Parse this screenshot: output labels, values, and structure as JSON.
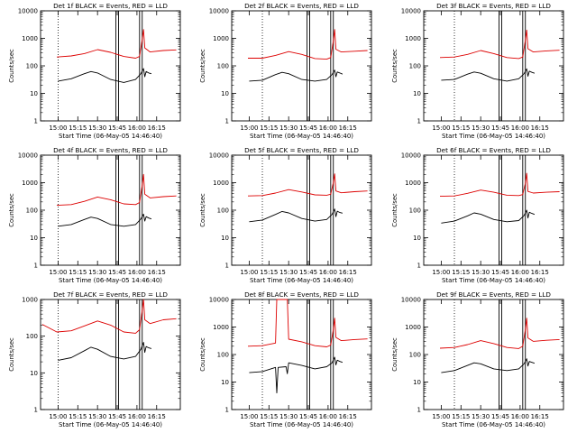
{
  "figure": {
    "background": "#ffffff",
    "events_color": "#000000",
    "lld_color": "#dd0000"
  },
  "chart_data": [
    {
      "type": "line",
      "title": "Det 1f BLACK = Events, RED = LLD",
      "xlabel": "Start Time (06-May-05 14:46:40)",
      "ylabel": "Counts/sec",
      "y_scale": "log",
      "ylim": [
        1,
        10000
      ],
      "yticks": [
        "1",
        "10",
        "100",
        "1000",
        "10000"
      ],
      "xticks": [
        "15:00",
        "15:15",
        "15:30",
        "15:45",
        "16:00",
        "16:15"
      ],
      "x_domain": [
        "14:46:40",
        "16:33:00"
      ],
      "dotted_line_at": "15:00",
      "series": [
        {
          "name": "LLD",
          "color": "#dd0000",
          "x": [
            "14:59",
            "15:10",
            "15:20",
            "15:30",
            "15:40",
            "15:50",
            "15:59",
            "16:02",
            "16:04",
            "16:05",
            "16:06",
            "16:10",
            "16:20",
            "16:30"
          ],
          "y": [
            210,
            230,
            280,
            390,
            310,
            220,
            190,
            220,
            900,
            2100,
            450,
            320,
            360,
            380
          ]
        },
        {
          "name": "Events",
          "color": "#000000",
          "x": [
            "15:00",
            "15:10",
            "15:20",
            "15:25",
            "15:30",
            "15:40",
            "15:50",
            "15:59",
            "16:03",
            "16:05",
            "16:06",
            "16:07",
            "16:09",
            "16:11"
          ],
          "y": [
            28,
            34,
            52,
            62,
            55,
            32,
            25,
            32,
            52,
            80,
            40,
            62,
            55,
            52
          ]
        }
      ],
      "saa_intervals": [
        [
          "15:44",
          "15:46"
        ],
        [
          "16:02",
          "16:04"
        ]
      ]
    },
    {
      "type": "line",
      "title": "Det 2f BLACK = Events, RED = LLD",
      "xlabel": "Start Time (06-May-05 14:46:40)",
      "ylabel": "Counts/sec",
      "y_scale": "log",
      "ylim": [
        1,
        10000
      ],
      "yticks": [
        "1",
        "10",
        "100",
        "1000",
        "10000"
      ],
      "xticks": [
        "15:00",
        "15:15",
        "15:30",
        "15:45",
        "16:00",
        "16:15"
      ],
      "x_domain": [
        "14:46:40",
        "16:33:00"
      ],
      "dotted_line_at": "15:10",
      "series": [
        {
          "name": "LLD",
          "color": "#dd0000",
          "x": [
            "14:59",
            "15:10",
            "15:20",
            "15:30",
            "15:40",
            "15:50",
            "15:59",
            "16:02",
            "16:04",
            "16:05",
            "16:06",
            "16:10",
            "16:20",
            "16:30"
          ],
          "y": [
            190,
            190,
            240,
            330,
            260,
            185,
            175,
            200,
            800,
            2100,
            400,
            320,
            340,
            360
          ]
        },
        {
          "name": "Events",
          "color": "#000000",
          "x": [
            "15:00",
            "15:10",
            "15:20",
            "15:25",
            "15:30",
            "15:40",
            "15:50",
            "15:59",
            "16:03",
            "16:05",
            "16:06",
            "16:07",
            "16:09",
            "16:11"
          ],
          "y": [
            28,
            30,
            48,
            58,
            52,
            32,
            28,
            32,
            48,
            70,
            40,
            60,
            55,
            50
          ]
        }
      ],
      "saa_intervals": [
        [
          "15:44",
          "15:46"
        ],
        [
          "16:02",
          "16:04"
        ]
      ]
    },
    {
      "type": "line",
      "title": "Det 3f BLACK = Events, RED = LLD",
      "xlabel": "Start Time (06-May-05 14:46:40)",
      "ylabel": "Counts/sec",
      "y_scale": "log",
      "ylim": [
        1,
        10000
      ],
      "yticks": [
        "1",
        "10",
        "100",
        "1000",
        "10000"
      ],
      "xticks": [
        "15:00",
        "15:15",
        "15:30",
        "15:45",
        "16:00",
        "16:15"
      ],
      "x_domain": [
        "14:46:40",
        "16:33:00"
      ],
      "dotted_line_at": "15:10",
      "series": [
        {
          "name": "LLD",
          "color": "#dd0000",
          "x": [
            "14:59",
            "15:10",
            "15:20",
            "15:30",
            "15:40",
            "15:50",
            "15:59",
            "16:02",
            "16:04",
            "16:05",
            "16:06",
            "16:10",
            "16:20",
            "16:30"
          ],
          "y": [
            200,
            210,
            260,
            360,
            280,
            200,
            185,
            210,
            850,
            2000,
            420,
            320,
            350,
            370
          ]
        },
        {
          "name": "Events",
          "color": "#000000",
          "x": [
            "15:00",
            "15:10",
            "15:20",
            "15:25",
            "15:30",
            "15:40",
            "15:50",
            "15:59",
            "16:03",
            "16:05",
            "16:06",
            "16:07",
            "16:09",
            "16:11"
          ],
          "y": [
            30,
            32,
            50,
            60,
            54,
            34,
            28,
            34,
            52,
            78,
            42,
            64,
            58,
            54
          ]
        }
      ],
      "saa_intervals": [
        [
          "15:44",
          "15:46"
        ],
        [
          "16:02",
          "16:04"
        ]
      ]
    },
    {
      "type": "line",
      "title": "Det 4f BLACK = Events, RED = LLD",
      "xlabel": "Start Time (06-May-05 14:46:40)",
      "ylabel": "Counts/sec",
      "y_scale": "log",
      "ylim": [
        1,
        10000
      ],
      "yticks": [
        "1",
        "10",
        "100",
        "1000",
        "10000"
      ],
      "xticks": [
        "15:00",
        "15:15",
        "15:30",
        "15:45",
        "16:00",
        "16:15"
      ],
      "x_domain": [
        "14:46:40",
        "16:33:00"
      ],
      "dotted_line_at": "15:00",
      "series": [
        {
          "name": "LLD",
          "color": "#dd0000",
          "x": [
            "14:59",
            "15:10",
            "15:20",
            "15:30",
            "15:40",
            "15:50",
            "15:59",
            "16:02",
            "16:04",
            "16:05",
            "16:06",
            "16:10",
            "16:20",
            "16:30"
          ],
          "y": [
            150,
            160,
            210,
            300,
            240,
            170,
            160,
            190,
            800,
            2000,
            380,
            280,
            310,
            330
          ]
        },
        {
          "name": "Events",
          "color": "#000000",
          "x": [
            "15:00",
            "15:10",
            "15:20",
            "15:25",
            "15:30",
            "15:40",
            "15:50",
            "15:59",
            "16:03",
            "16:05",
            "16:06",
            "16:07",
            "16:09",
            "16:11"
          ],
          "y": [
            26,
            30,
            46,
            56,
            50,
            30,
            26,
            30,
            48,
            72,
            40,
            58,
            52,
            48
          ]
        }
      ],
      "saa_intervals": [
        [
          "15:44",
          "15:46"
        ],
        [
          "16:02",
          "16:04"
        ]
      ]
    },
    {
      "type": "line",
      "title": "Det 5f BLACK = Events, RED = LLD",
      "xlabel": "Start Time (06-May-05 14:46:40)",
      "ylabel": "Counts/sec",
      "y_scale": "log",
      "ylim": [
        1,
        10000
      ],
      "yticks": [
        "1",
        "10",
        "100",
        "1000",
        "10000"
      ],
      "xticks": [
        "15:00",
        "15:15",
        "15:30",
        "15:45",
        "16:00",
        "16:15"
      ],
      "x_domain": [
        "14:46:40",
        "16:33:00"
      ],
      "dotted_line_at": "15:10",
      "series": [
        {
          "name": "LLD",
          "color": "#dd0000",
          "x": [
            "14:59",
            "15:10",
            "15:20",
            "15:30",
            "15:40",
            "15:50",
            "15:59",
            "16:02",
            "16:04",
            "16:05",
            "16:06",
            "16:10",
            "16:20",
            "16:30"
          ],
          "y": [
            330,
            340,
            420,
            560,
            460,
            360,
            350,
            380,
            1000,
            2100,
            500,
            430,
            470,
            500
          ]
        },
        {
          "name": "Events",
          "color": "#000000",
          "x": [
            "15:00",
            "15:10",
            "15:20",
            "15:25",
            "15:30",
            "15:40",
            "15:50",
            "15:59",
            "16:03",
            "16:05",
            "16:06",
            "16:07",
            "16:09",
            "16:11"
          ],
          "y": [
            38,
            44,
            70,
            90,
            80,
            50,
            40,
            46,
            70,
            110,
            58,
            92,
            82,
            78
          ]
        }
      ],
      "saa_intervals": [
        [
          "15:44",
          "15:46"
        ],
        [
          "16:02",
          "16:04"
        ]
      ]
    },
    {
      "type": "line",
      "title": "Det 6f BLACK = Events, RED = LLD",
      "xlabel": "Start Time (06-May-05 14:46:40)",
      "ylabel": "Counts/sec",
      "y_scale": "log",
      "ylim": [
        1,
        10000
      ],
      "yticks": [
        "1",
        "10",
        "100",
        "1000",
        "10000"
      ],
      "xticks": [
        "15:00",
        "15:15",
        "15:30",
        "15:45",
        "16:00",
        "16:15"
      ],
      "x_domain": [
        "14:46:40",
        "16:33:00"
      ],
      "dotted_line_at": "15:10",
      "series": [
        {
          "name": "LLD",
          "color": "#dd0000",
          "x": [
            "14:59",
            "15:10",
            "15:20",
            "15:30",
            "15:40",
            "15:50",
            "15:59",
            "16:02",
            "16:04",
            "16:05",
            "16:06",
            "16:10",
            "16:20",
            "16:30"
          ],
          "y": [
            320,
            330,
            410,
            540,
            450,
            350,
            340,
            370,
            950,
            2200,
            480,
            420,
            450,
            470
          ]
        },
        {
          "name": "Events",
          "color": "#000000",
          "x": [
            "15:00",
            "15:10",
            "15:20",
            "15:25",
            "15:30",
            "15:40",
            "15:50",
            "15:59",
            "16:03",
            "16:05",
            "16:06",
            "16:07",
            "16:09",
            "16:11"
          ],
          "y": [
            34,
            40,
            62,
            80,
            72,
            46,
            38,
            42,
            64,
            100,
            52,
            84,
            76,
            70
          ]
        }
      ],
      "saa_intervals": [
        [
          "15:44",
          "15:46"
        ],
        [
          "16:02",
          "16:04"
        ]
      ]
    },
    {
      "type": "line",
      "title": "Det 7f BLACK = Events, RED = LLD",
      "xlabel": "Start Time (06-May-05 14:46:40)",
      "ylabel": "Counts/sec",
      "y_scale": "log",
      "ylim": [
        1,
        1000
      ],
      "yticks": [
        "1",
        "10",
        "100",
        "1000"
      ],
      "xticks": [
        "15:00",
        "15:15",
        "15:30",
        "15:45",
        "16:00",
        "16:15"
      ],
      "x_domain": [
        "14:46:40",
        "16:33:00"
      ],
      "dotted_line_at": "15:00",
      "series": [
        {
          "name": "LLD",
          "color": "#dd0000",
          "x": [
            "14:48",
            "14:59",
            "15:10",
            "15:20",
            "15:30",
            "15:40",
            "15:50",
            "15:59",
            "16:02",
            "16:04",
            "16:05",
            "16:06",
            "16:10",
            "16:20",
            "16:30"
          ],
          "y": [
            210,
            130,
            140,
            190,
            260,
            200,
            130,
            120,
            150,
            500,
            1000,
            280,
            220,
            280,
            300
          ]
        },
        {
          "name": "Events",
          "color": "#000000",
          "x": [
            "15:00",
            "15:10",
            "15:20",
            "15:25",
            "15:30",
            "15:40",
            "15:50",
            "15:59",
            "16:03",
            "16:05",
            "16:06",
            "16:07",
            "16:09",
            "16:11"
          ],
          "y": [
            22,
            26,
            40,
            50,
            44,
            28,
            24,
            28,
            44,
            68,
            36,
            52,
            48,
            46
          ]
        }
      ],
      "saa_intervals": [
        [
          "15:44",
          "15:46"
        ],
        [
          "16:02",
          "16:04"
        ]
      ]
    },
    {
      "type": "line",
      "title": "Det 8f BLACK = Events, RED = LLD",
      "xlabel": "Start Time (06-May-05 14:46:40)",
      "ylabel": "Counts/sec",
      "y_scale": "log",
      "ylim": [
        1,
        10000
      ],
      "yticks": [
        "1",
        "10",
        "100",
        "1000",
        "10000"
      ],
      "xticks": [
        "15:00",
        "15:15",
        "15:30",
        "15:45",
        "16:00",
        "16:15"
      ],
      "x_domain": [
        "14:46:40",
        "16:33:00"
      ],
      "dotted_line_at": "15:10",
      "series": [
        {
          "name": "LLD",
          "color": "#dd0000",
          "x": [
            "14:59",
            "15:10",
            "15:20",
            "15:21",
            "15:22",
            "15:28",
            "15:29",
            "15:30",
            "15:40",
            "15:50",
            "15:59",
            "16:02",
            "16:04",
            "16:05",
            "16:06",
            "16:10",
            "16:20",
            "16:30"
          ],
          "y": [
            200,
            210,
            260,
            10000,
            10000,
            10000,
            10000,
            360,
            290,
            210,
            190,
            220,
            800,
            2100,
            420,
            320,
            350,
            370
          ]
        },
        {
          "name": "Events",
          "color": "#000000",
          "x": [
            "15:00",
            "15:10",
            "15:20",
            "15:21",
            "15:22",
            "15:28",
            "15:29",
            "15:30",
            "15:40",
            "15:50",
            "15:59",
            "16:03",
            "16:05",
            "16:06",
            "16:07",
            "16:09",
            "16:11"
          ],
          "y": [
            22,
            24,
            34,
            4,
            34,
            36,
            20,
            50,
            40,
            30,
            36,
            50,
            80,
            42,
            62,
            56,
            52
          ]
        }
      ],
      "saa_intervals": [
        [
          "15:44",
          "15:46"
        ],
        [
          "16:02",
          "16:04"
        ]
      ]
    },
    {
      "type": "line",
      "title": "Det 9f BLACK = Events, RED = LLD",
      "xlabel": "Start Time (06-May-05 14:46:40)",
      "ylabel": "Counts/sec",
      "y_scale": "log",
      "ylim": [
        1,
        10000
      ],
      "yticks": [
        "1",
        "10",
        "100",
        "1000",
        "10000"
      ],
      "xticks": [
        "15:00",
        "15:15",
        "15:30",
        "15:45",
        "16:00",
        "16:15"
      ],
      "x_domain": [
        "14:46:40",
        "16:33:00"
      ],
      "dotted_line_at": "15:10",
      "series": [
        {
          "name": "LLD",
          "color": "#dd0000",
          "x": [
            "14:59",
            "15:10",
            "15:20",
            "15:30",
            "15:40",
            "15:50",
            "15:59",
            "16:02",
            "16:04",
            "16:05",
            "16:06",
            "16:10",
            "16:20",
            "16:30"
          ],
          "y": [
            170,
            180,
            230,
            320,
            250,
            180,
            165,
            200,
            800,
            2100,
            400,
            300,
            330,
            350
          ]
        },
        {
          "name": "Events",
          "color": "#000000",
          "x": [
            "15:00",
            "15:10",
            "15:20",
            "15:25",
            "15:30",
            "15:40",
            "15:50",
            "15:59",
            "16:03",
            "16:05",
            "16:06",
            "16:07",
            "16:09",
            "16:11"
          ],
          "y": [
            22,
            26,
            40,
            50,
            46,
            30,
            26,
            30,
            46,
            70,
            38,
            56,
            52,
            48
          ]
        }
      ],
      "saa_intervals": [
        [
          "15:44",
          "15:46"
        ],
        [
          "16:02",
          "16:04"
        ]
      ]
    }
  ]
}
